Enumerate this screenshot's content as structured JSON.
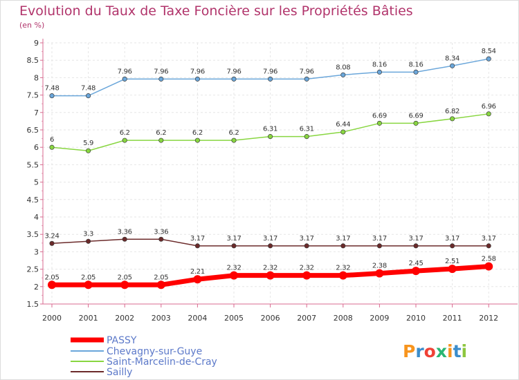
{
  "chart_data": {
    "type": "line",
    "title": "Evolution du Taux de Taxe Foncière sur les Propriétés Bâties",
    "unit_label": "(en %)",
    "xlabel": "",
    "ylabel": "",
    "ylim": [
      1.5,
      9
    ],
    "y_ticks": [
      "1.5",
      "2",
      "2.5",
      "3",
      "3.5",
      "4",
      "4.5",
      "5",
      "5.5",
      "6",
      "6.5",
      "7",
      "7.5",
      "8",
      "8.5",
      "9"
    ],
    "categories": [
      "2000",
      "2001",
      "2002",
      "2003",
      "2004",
      "2005",
      "2006",
      "2007",
      "2008",
      "2009",
      "2010",
      "2011",
      "2012"
    ],
    "series": [
      {
        "name": "PASSY",
        "color": "#ff0000",
        "values": [
          2.05,
          2.05,
          2.05,
          2.05,
          2.21,
          2.32,
          2.32,
          2.32,
          2.32,
          2.38,
          2.45,
          2.51,
          2.58
        ],
        "labels": [
          "2.05",
          "2.05",
          "2.05",
          "2.05",
          "2.21",
          "2.32",
          "2.32",
          "2.32",
          "2.32",
          "2.38",
          "2.45",
          "2.51",
          "2.58"
        ]
      },
      {
        "name": "Chevagny-sur-Guye",
        "color": "#6aa6da",
        "values": [
          7.48,
          7.48,
          7.96,
          7.96,
          7.96,
          7.96,
          7.96,
          7.96,
          8.08,
          8.16,
          8.16,
          8.34,
          8.54
        ],
        "labels": [
          "7.48",
          "7.48",
          "7.96",
          "7.96",
          "7.96",
          "7.96",
          "7.96",
          "7.96",
          "8.08",
          "8.16",
          "8.16",
          "8.34",
          "8.54"
        ]
      },
      {
        "name": "Saint-Marcelin-de-Cray",
        "color": "#88d640",
        "values": [
          6,
          5.9,
          6.2,
          6.2,
          6.2,
          6.2,
          6.31,
          6.31,
          6.44,
          6.69,
          6.69,
          6.82,
          6.96
        ],
        "labels": [
          "6",
          "5.9",
          "6.2",
          "6.2",
          "6.2",
          "6.2",
          "6.31",
          "6.31",
          "6.44",
          "6.69",
          "6.69",
          "6.82",
          "6.96"
        ]
      },
      {
        "name": "Sailly",
        "color": "#6b2a2a",
        "values": [
          3.24,
          3.3,
          3.36,
          3.36,
          3.17,
          3.17,
          3.17,
          3.17,
          3.17,
          3.17,
          3.17,
          3.17,
          3.17
        ],
        "labels": [
          "3.24",
          "3.3",
          "3.36",
          "3.36",
          "3.17",
          "3.17",
          "3.17",
          "3.17",
          "3.17",
          "3.17",
          "3.17",
          "3.17",
          "3.17"
        ]
      }
    ],
    "legend_position": "bottom-left"
  },
  "logo": {
    "text": "Proxiti",
    "letters": [
      "P",
      "r",
      "o",
      "x",
      "i",
      "t",
      "i"
    ],
    "colors": [
      "#f7941d",
      "#3c8dcb",
      "#ef4136",
      "#2bb673",
      "#f7941d",
      "#3c8dcb",
      "#8dc63f"
    ]
  }
}
